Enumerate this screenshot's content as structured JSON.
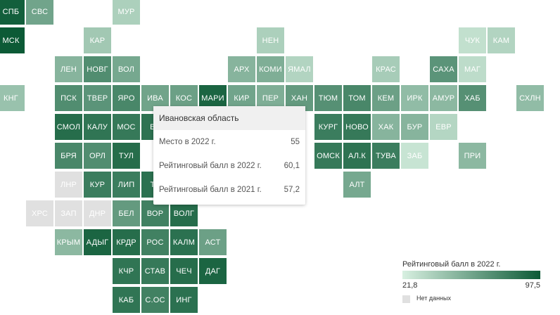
{
  "map": {
    "gradient": {
      "low": "#d8f0e1",
      "high": "#0c5a36"
    },
    "no_data_color": "#e0e0e0",
    "tiles": [
      {
        "label": "СПБ",
        "score": 95,
        "col": 0,
        "row": 0
      },
      {
        "label": "СВС",
        "score": 60,
        "col": 1,
        "row": 0
      },
      {
        "label": "МУР",
        "score": 38,
        "col": 4,
        "row": 0
      },
      {
        "label": "МСК",
        "score": 97.5,
        "col": 0,
        "row": 1
      },
      {
        "label": "КАР",
        "score": 42,
        "col": 3,
        "row": 1
      },
      {
        "label": "НЕН",
        "score": 38,
        "col": 9,
        "row": 1
      },
      {
        "label": "ЧУК",
        "score": 30,
        "col": 16,
        "row": 1
      },
      {
        "label": "КАМ",
        "score": 36,
        "col": 17,
        "row": 1
      },
      {
        "label": "ЛЕН",
        "score": 52,
        "col": 2,
        "row": 2
      },
      {
        "label": "НОВГ",
        "score": 72,
        "col": 3,
        "row": 2
      },
      {
        "label": "ВОЛ",
        "score": 58,
        "col": 4,
        "row": 2
      },
      {
        "label": "АРХ",
        "score": 52,
        "col": 8,
        "row": 2
      },
      {
        "label": "КОМИ",
        "score": 55,
        "col": 9,
        "row": 2
      },
      {
        "label": "ЯМАЛ",
        "score": 36,
        "col": 10,
        "row": 2
      },
      {
        "label": "КРАС",
        "score": 40,
        "col": 13,
        "row": 2
      },
      {
        "label": "САХА",
        "score": 68,
        "col": 15,
        "row": 2
      },
      {
        "label": "МАГ",
        "score": 32,
        "col": 16,
        "row": 2
      },
      {
        "label": "КНГ",
        "score": 45,
        "col": 0,
        "row": 3
      },
      {
        "label": "ПСК",
        "score": 72,
        "col": 2,
        "row": 3
      },
      {
        "label": "ТВЕР",
        "score": 68,
        "col": 3,
        "row": 3
      },
      {
        "label": "ЯРО",
        "score": 75,
        "col": 4,
        "row": 3
      },
      {
        "label": "ИВА",
        "score": 60.1,
        "col": 5,
        "row": 3
      },
      {
        "label": "КОС",
        "score": 62,
        "col": 6,
        "row": 3
      },
      {
        "label": "МАРИ",
        "score": 92,
        "col": 7,
        "row": 3
      },
      {
        "label": "КИР",
        "score": 60,
        "col": 8,
        "row": 3
      },
      {
        "label": "ПЕР",
        "score": 55,
        "col": 9,
        "row": 3
      },
      {
        "label": "ХАН",
        "score": 65,
        "col": 10,
        "row": 3
      },
      {
        "label": "ТЮМ",
        "score": 70,
        "col": 11,
        "row": 3
      },
      {
        "label": "ТОМ",
        "score": 75,
        "col": 12,
        "row": 3
      },
      {
        "label": "КЕМ",
        "score": 62,
        "col": 13,
        "row": 3
      },
      {
        "label": "ИРК",
        "score": 48,
        "col": 14,
        "row": 3
      },
      {
        "label": "АМУР",
        "score": 50,
        "col": 15,
        "row": 3
      },
      {
        "label": "ХАБ",
        "score": 70,
        "col": 16,
        "row": 3
      },
      {
        "label": "СХЛН",
        "score": 48,
        "col": 18,
        "row": 3
      },
      {
        "label": "СМОЛ",
        "score": 88,
        "col": 2,
        "row": 4
      },
      {
        "label": "КАЛУ",
        "score": 84,
        "col": 3,
        "row": 4
      },
      {
        "label": "МОС",
        "score": 82,
        "col": 4,
        "row": 4
      },
      {
        "label": "ВЛ",
        "score": 85,
        "col": 5,
        "row": 4
      },
      {
        "label": "КУРГ",
        "score": 80,
        "col": 11,
        "row": 4
      },
      {
        "label": "НОВО",
        "score": 82,
        "col": 12,
        "row": 4
      },
      {
        "label": "ХАК",
        "score": 52,
        "col": 13,
        "row": 4
      },
      {
        "label": "БУР",
        "score": 52,
        "col": 14,
        "row": 4
      },
      {
        "label": "ЕВР",
        "score": 35,
        "col": 15,
        "row": 4
      },
      {
        "label": "БРЯ",
        "score": 75,
        "col": 2,
        "row": 5
      },
      {
        "label": "ОРЛ",
        "score": 72,
        "col": 3,
        "row": 5
      },
      {
        "label": "ТУЛ",
        "score": 88,
        "col": 4,
        "row": 5
      },
      {
        "label": "ОМСК",
        "score": 82,
        "col": 11,
        "row": 5
      },
      {
        "label": "АЛ.К",
        "score": 85,
        "col": 12,
        "row": 5
      },
      {
        "label": "ТУВА",
        "score": 80,
        "col": 13,
        "row": 5
      },
      {
        "label": "ЗАБ",
        "score": 28,
        "col": 14,
        "row": 5
      },
      {
        "label": "ПРИ",
        "score": 50,
        "col": 16,
        "row": 5
      },
      {
        "label": "ЛНР",
        "score": null,
        "col": 2,
        "row": 6
      },
      {
        "label": "КУР",
        "score": 80,
        "col": 3,
        "row": 6
      },
      {
        "label": "ЛИП",
        "score": 80,
        "col": 4,
        "row": 6
      },
      {
        "label": "ТА",
        "score": 86,
        "col": 5,
        "row": 6
      },
      {
        "label": "АЛТ",
        "score": 58,
        "col": 12,
        "row": 6
      },
      {
        "label": "ХРС",
        "score": null,
        "col": 1,
        "row": 7
      },
      {
        "label": "ЗАП",
        "score": null,
        "col": 2,
        "row": 7
      },
      {
        "label": "ДНР",
        "score": null,
        "col": 3,
        "row": 7
      },
      {
        "label": "БЕЛ",
        "score": 65,
        "col": 4,
        "row": 7
      },
      {
        "label": "ВОР",
        "score": 78,
        "col": 5,
        "row": 7
      },
      {
        "label": "ВОЛГ",
        "score": 88,
        "col": 6,
        "row": 7
      },
      {
        "label": "КРЫМ",
        "score": 50,
        "col": 2,
        "row": 8
      },
      {
        "label": "АДЫГ",
        "score": 92,
        "col": 3,
        "row": 8
      },
      {
        "label": "КРДР",
        "score": 88,
        "col": 4,
        "row": 8
      },
      {
        "label": "РОС",
        "score": 78,
        "col": 5,
        "row": 8
      },
      {
        "label": "КАЛМ",
        "score": 86,
        "col": 6,
        "row": 8
      },
      {
        "label": "АСТ",
        "score": 62,
        "col": 7,
        "row": 8
      },
      {
        "label": "КЧР",
        "score": 84,
        "col": 4,
        "row": 9
      },
      {
        "label": "СТАВ",
        "score": 82,
        "col": 5,
        "row": 9
      },
      {
        "label": "ЧЕЧ",
        "score": 88,
        "col": 6,
        "row": 9
      },
      {
        "label": "ДАГ",
        "score": 92,
        "col": 7,
        "row": 9
      },
      {
        "label": "КАБ",
        "score": 84,
        "col": 4,
        "row": 10
      },
      {
        "label": "С.ОС",
        "score": 78,
        "col": 5,
        "row": 10
      },
      {
        "label": "ИНГ",
        "score": 86,
        "col": 6,
        "row": 10
      }
    ]
  },
  "tooltip": {
    "title": "Ивановская область",
    "rows": [
      {
        "label": "Место в 2022 г.",
        "value": "55"
      },
      {
        "label": "Рейтинговый балл в 2022 г.",
        "value": "60,1"
      },
      {
        "label": "Рейтинговый балл в 2021 г.",
        "value": "57,2"
      }
    ]
  },
  "legend": {
    "title": "Рейтинговый балл в 2022 г.",
    "min_label": "21,8",
    "max_label": "97,5",
    "min": 21.8,
    "max": 97.5,
    "no_data_label": "Нет данных"
  }
}
